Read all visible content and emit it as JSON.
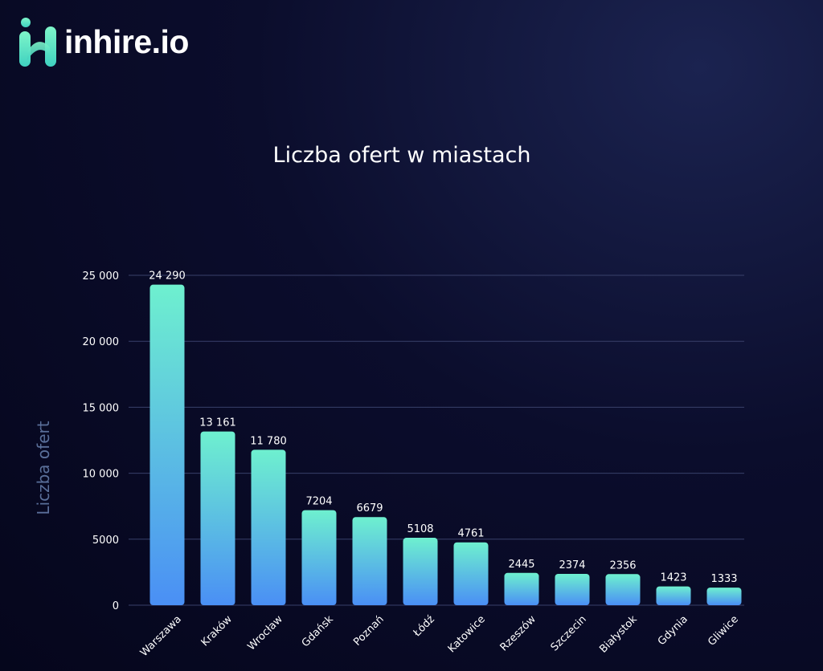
{
  "brand": {
    "name": "inhire.io",
    "logo_icon": "inhire-logo-icon"
  },
  "colors": {
    "bar_top": "#6ef0cf",
    "bar_bottom": "#4a8ff5",
    "grid": "#39406a",
    "axis_title": "#5a6f9a",
    "text": "#ffffff"
  },
  "chart_data": {
    "type": "bar",
    "title": "Liczba ofert w miastach",
    "xlabel": "",
    "ylabel": "Liczba ofert",
    "ylim": [
      0,
      25000
    ],
    "yticks": [
      0,
      5000,
      10000,
      15000,
      20000,
      25000
    ],
    "ytick_labels": [
      "0",
      "5000",
      "10 000",
      "15 000",
      "20 000",
      "25 000"
    ],
    "grid": true,
    "categories": [
      "Warszawa",
      "Kraków",
      "Wrocław",
      "Gdańsk",
      "Poznań",
      "Łódź",
      "Katowice",
      "Rzeszów",
      "Szczecin",
      "Białystok",
      "Gdynia",
      "Gliwice"
    ],
    "values": [
      24290,
      13161,
      11780,
      7204,
      6679,
      5108,
      4761,
      2445,
      2374,
      2356,
      1423,
      1333
    ],
    "value_labels": [
      "24 290",
      "13 161",
      "11 780",
      "7204",
      "6679",
      "5108",
      "4761",
      "2445",
      "2374",
      "2356",
      "1423",
      "1333"
    ]
  }
}
